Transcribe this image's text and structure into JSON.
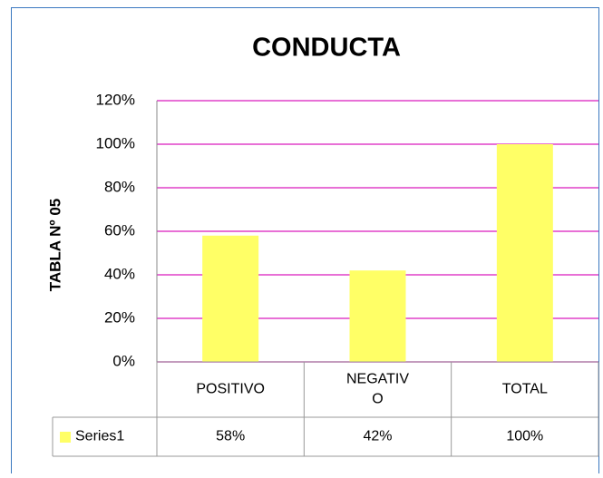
{
  "chart_data": {
    "type": "bar",
    "title": "CONDUCTA",
    "y_label": "TABLA Nº 05",
    "categories": [
      "POSITIVO",
      "NEGATIVO",
      "TOTAL"
    ],
    "series": [
      {
        "name": "Series1",
        "color": "#ffff66",
        "values": [
          58,
          42,
          100
        ],
        "value_labels": [
          "58%",
          "42%",
          "100%"
        ]
      }
    ],
    "ylim": [
      0,
      120
    ],
    "yticks": [
      {
        "value": 0,
        "label": "0%"
      },
      {
        "value": 20,
        "label": "20%"
      },
      {
        "value": 40,
        "label": "40%"
      },
      {
        "value": 60,
        "label": "60%"
      },
      {
        "value": 80,
        "label": "80%"
      },
      {
        "value": 100,
        "label": "100%"
      },
      {
        "value": 120,
        "label": "120%"
      }
    ],
    "grid": true,
    "grid_color": "#e040c8",
    "data_table": true
  }
}
